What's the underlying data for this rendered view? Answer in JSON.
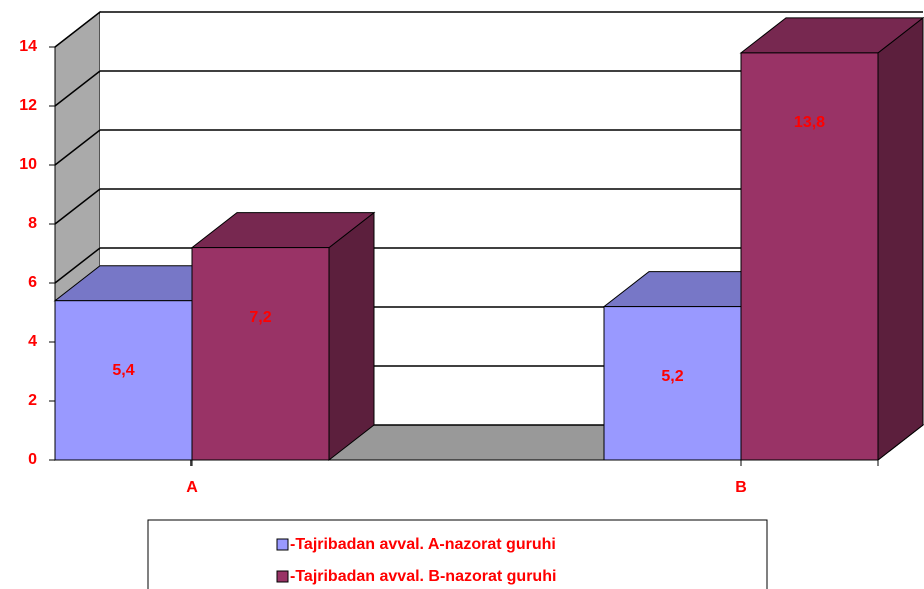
{
  "chart_data": {
    "type": "bar3d",
    "categories": [
      "A",
      "B"
    ],
    "series": [
      {
        "name": "-Tajribadan avval. A-nazorat guruhi",
        "color": "#9999ff",
        "values": [
          5.4,
          5.2
        ],
        "value_labels": [
          "5,4",
          "5,2"
        ]
      },
      {
        "name": "-Tajribadan avval. B-nazorat guruhi",
        "color": "#993366",
        "values": [
          7.2,
          13.8
        ],
        "value_labels": [
          "7,2",
          "13,8"
        ]
      }
    ],
    "ylim": [
      0,
      14
    ],
    "yticks": [
      0,
      2,
      4,
      6,
      8,
      10,
      12,
      14
    ],
    "grid": true,
    "legend": "bottom"
  }
}
